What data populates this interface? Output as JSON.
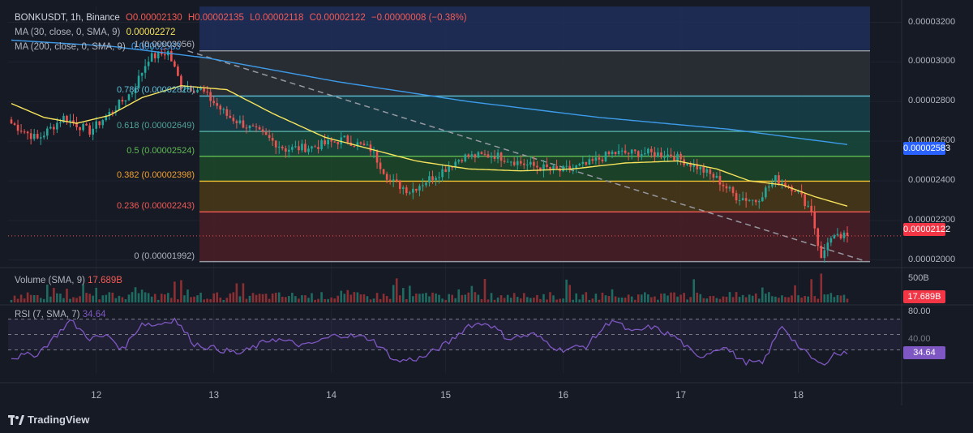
{
  "header": {
    "symbol": "BONKUSDT, 1h, Binance",
    "open": "O0.00002130",
    "high": "H0.00002135",
    "low": "L0.00002118",
    "close": "C0.00002122",
    "change": "−0.00000008 (−0.38%)"
  },
  "ma30": {
    "label": "MA (30, close, 0, SMA, 9)",
    "value": "0.00002272",
    "color": "#f7e45c"
  },
  "ma200": {
    "label": "MA (200, close, 0, SMA, 9)",
    "value": "0.00002583",
    "color": "#3d9be9"
  },
  "volume": {
    "label": "Volume (SMA, 9)",
    "value": "17.689B",
    "axis_label": "500B"
  },
  "rsi": {
    "label": "RSI (7, SMA, 7)",
    "value": "34.64",
    "axis_top": "80.00",
    "axis_mid": "40.00"
  },
  "price_axis": {
    "ticks": [
      "0.00003200",
      "0.00003000",
      "0.00002800",
      "0.00002600",
      "0.00002400",
      "0.00002200",
      "0.00002000"
    ],
    "ma200_tag": "0.00002583",
    "last_tag": "0.00002122"
  },
  "fib": [
    {
      "text": "1 (0.00003056)",
      "color": "#b2b5be"
    },
    {
      "text": "0.786 (0.00002828)",
      "color": "#5fbfd6"
    },
    {
      "text": "0.618 (0.00002649)",
      "color": "#4fa39a"
    },
    {
      "text": "0.5 (0.00002524)",
      "color": "#5fbb54"
    },
    {
      "text": "0.382 (0.00002398)",
      "color": "#f0a030"
    },
    {
      "text": "0.236 (0.00002243)",
      "color": "#f25a55"
    },
    {
      "text": "0 (0.00001992)",
      "color": "#b2b5be"
    }
  ],
  "dates": [
    "12",
    "13",
    "14",
    "15",
    "16",
    "17",
    "18"
  ],
  "brand": "TradingView",
  "chart_data": {
    "type": "candlestick",
    "timeframe": "1h",
    "x_labels": [
      "12",
      "13",
      "14",
      "15",
      "16",
      "17",
      "18"
    ],
    "y_range": [
      1.97e-05,
      3.28e-05
    ],
    "fib_levels": [
      3.056e-05,
      2.828e-05,
      2.649e-05,
      2.524e-05,
      2.398e-05,
      2.243e-05,
      1.992e-05
    ],
    "close_anchors": [
      [
        0,
        2.69e-05
      ],
      [
        8,
        2.61e-05
      ],
      [
        16,
        2.72e-05
      ],
      [
        24,
        2.65e-05
      ],
      [
        30,
        2.74e-05
      ],
      [
        37,
        2.85e-05
      ],
      [
        42,
        3.02e-05
      ],
      [
        48,
        3.05e-05
      ],
      [
        52,
        2.88e-05
      ],
      [
        58,
        2.86e-05
      ],
      [
        66,
        2.73e-05
      ],
      [
        76,
        2.64e-05
      ],
      [
        84,
        2.56e-05
      ],
      [
        92,
        2.57e-05
      ],
      [
        102,
        2.61e-05
      ],
      [
        110,
        2.56e-05
      ],
      [
        116,
        2.4e-05
      ],
      [
        122,
        2.35e-05
      ],
      [
        130,
        2.43e-05
      ],
      [
        138,
        2.52e-05
      ],
      [
        148,
        2.53e-05
      ],
      [
        158,
        2.48e-05
      ],
      [
        168,
        2.45e-05
      ],
      [
        176,
        2.48e-05
      ],
      [
        184,
        2.54e-05
      ],
      [
        194,
        2.54e-05
      ],
      [
        202,
        2.53e-05
      ],
      [
        210,
        2.47e-05
      ],
      [
        216,
        2.41e-05
      ],
      [
        222,
        2.32e-05
      ],
      [
        228,
        2.3e-05
      ],
      [
        234,
        2.41e-05
      ],
      [
        240,
        2.36e-05
      ],
      [
        245,
        2.25e-05
      ],
      [
        248,
        2e-05
      ],
      [
        250,
        2.1e-05
      ],
      [
        256,
        2.122e-05
      ]
    ],
    "ma30_anchors": [
      [
        0,
        2.79e-05
      ],
      [
        10,
        2.72e-05
      ],
      [
        20,
        2.69e-05
      ],
      [
        30,
        2.73e-05
      ],
      [
        40,
        2.82e-05
      ],
      [
        52,
        2.88e-05
      ],
      [
        66,
        2.86e-05
      ],
      [
        80,
        2.74e-05
      ],
      [
        96,
        2.62e-05
      ],
      [
        110,
        2.56e-05
      ],
      [
        124,
        2.5e-05
      ],
      [
        140,
        2.46e-05
      ],
      [
        156,
        2.45e-05
      ],
      [
        172,
        2.46e-05
      ],
      [
        188,
        2.49e-05
      ],
      [
        204,
        2.5e-05
      ],
      [
        216,
        2.46e-05
      ],
      [
        226,
        2.4e-05
      ],
      [
        236,
        2.38e-05
      ],
      [
        246,
        2.32e-05
      ],
      [
        256,
        2.272e-05
      ]
    ],
    "ma200_anchors": [
      [
        0,
        3.11e-05
      ],
      [
        30,
        3.08e-05
      ],
      [
        60,
        3.02e-05
      ],
      [
        100,
        2.9e-05
      ],
      [
        140,
        2.8e-05
      ],
      [
        180,
        2.72e-05
      ],
      [
        220,
        2.66e-05
      ],
      [
        256,
        2.583e-05
      ]
    ],
    "trendline": [
      [
        54,
        3.056e-05
      ],
      [
        262,
        1.992e-05
      ]
    ],
    "rsi_anchors": [
      [
        0,
        30
      ],
      [
        8,
        35
      ],
      [
        14,
        60
      ],
      [
        18,
        78
      ],
      [
        24,
        55
      ],
      [
        30,
        58
      ],
      [
        34,
        40
      ],
      [
        40,
        75
      ],
      [
        44,
        72
      ],
      [
        50,
        80
      ],
      [
        56,
        48
      ],
      [
        62,
        42
      ],
      [
        70,
        35
      ],
      [
        80,
        55
      ],
      [
        90,
        45
      ],
      [
        100,
        60
      ],
      [
        110,
        55
      ],
      [
        118,
        25
      ],
      [
        126,
        30
      ],
      [
        134,
        50
      ],
      [
        140,
        72
      ],
      [
        146,
        75
      ],
      [
        152,
        55
      ],
      [
        160,
        60
      ],
      [
        168,
        40
      ],
      [
        176,
        45
      ],
      [
        184,
        80
      ],
      [
        190,
        62
      ],
      [
        196,
        70
      ],
      [
        204,
        55
      ],
      [
        210,
        30
      ],
      [
        218,
        45
      ],
      [
        224,
        25
      ],
      [
        230,
        22
      ],
      [
        236,
        72
      ],
      [
        242,
        40
      ],
      [
        248,
        20
      ],
      [
        252,
        35
      ],
      [
        256,
        34.64
      ]
    ],
    "last_close": 2.122e-05,
    "last_rsi": 34.64,
    "last_volume": "17.689B"
  }
}
